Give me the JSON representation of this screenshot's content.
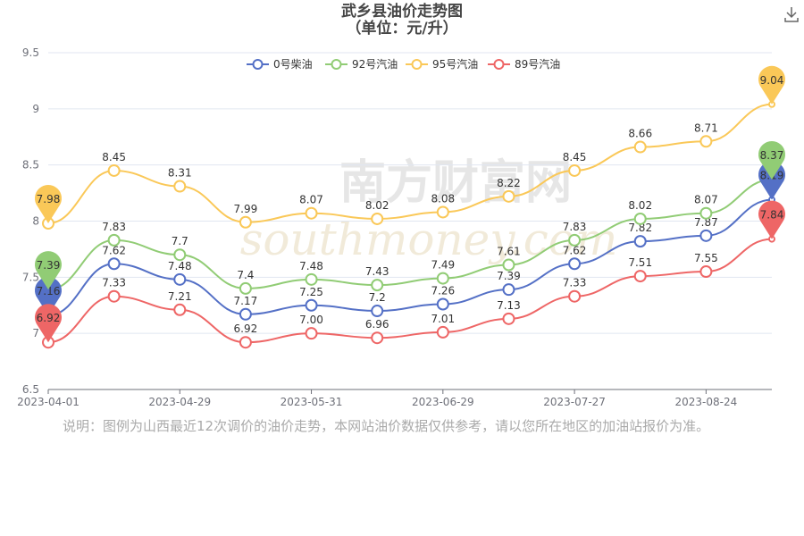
{
  "title_line1": "武乡县油价走势图",
  "title_line2": "（单位：元/升）",
  "note": "说明：图例为山西最近12次调价的油价走势，本网站油价数据仅供参考，请以您所在地区的加油站报价为准。",
  "watermark": "南方财富网 southmoney.com",
  "download_icon": "download-icon",
  "chart_data": {
    "type": "line",
    "ylim": [
      6.5,
      9.5
    ],
    "yticks": [
      "6.5",
      "7",
      "7.5",
      "8",
      "8.5",
      "9",
      "9.5"
    ],
    "xtick_labels": [
      "2023-04-01",
      "2023-04-29",
      "2023-05-31",
      "2023-06-29",
      "2023-07-27",
      "2023-08-24"
    ],
    "legend_position": "top",
    "smooth": true,
    "grid": "horizontal",
    "series": [
      {
        "name": "0号柴油",
        "color": "#5470c6",
        "values": [
          7.16,
          7.62,
          7.48,
          7.17,
          7.25,
          7.2,
          7.26,
          7.39,
          7.62,
          7.82,
          7.87,
          8.19
        ],
        "labels": [
          "7.16",
          "7.62",
          "7.48",
          "7.17",
          "7.25",
          "7.2",
          "7.26",
          "7.39",
          "7.62",
          "7.82",
          "7.87",
          "8.19"
        ]
      },
      {
        "name": "92号汽油",
        "color": "#91cc75",
        "values": [
          7.39,
          7.83,
          7.7,
          7.4,
          7.48,
          7.43,
          7.49,
          7.61,
          7.83,
          8.02,
          8.07,
          8.37
        ],
        "labels": [
          "7.39",
          "7.83",
          "7.7",
          "7.4",
          "7.48",
          "7.43",
          "7.49",
          "7.61",
          "7.83",
          "8.02",
          "8.07",
          "8.37"
        ]
      },
      {
        "name": "95号汽油",
        "color": "#fac858",
        "values": [
          7.98,
          8.45,
          8.31,
          7.99,
          8.07,
          8.02,
          8.08,
          8.22,
          8.45,
          8.66,
          8.71,
          9.04
        ],
        "labels": [
          "7.98",
          "8.45",
          "8.31",
          "7.99",
          "8.07",
          "8.02",
          "8.08",
          "8.22",
          "8.45",
          "8.66",
          "8.71",
          "9.04"
        ]
      },
      {
        "name": "89号汽油",
        "color": "#ee6666",
        "values": [
          6.92,
          7.33,
          7.21,
          6.92,
          7.0,
          6.96,
          7.01,
          7.13,
          7.33,
          7.51,
          7.55,
          7.84
        ],
        "labels": [
          "6.92",
          "7.33",
          "7.21",
          "6.92",
          "7.00",
          "6.96",
          "7.01",
          "7.13",
          "7.33",
          "7.51",
          "7.55",
          "7.84"
        ]
      }
    ],
    "markpoints": [
      "first",
      "last"
    ]
  }
}
